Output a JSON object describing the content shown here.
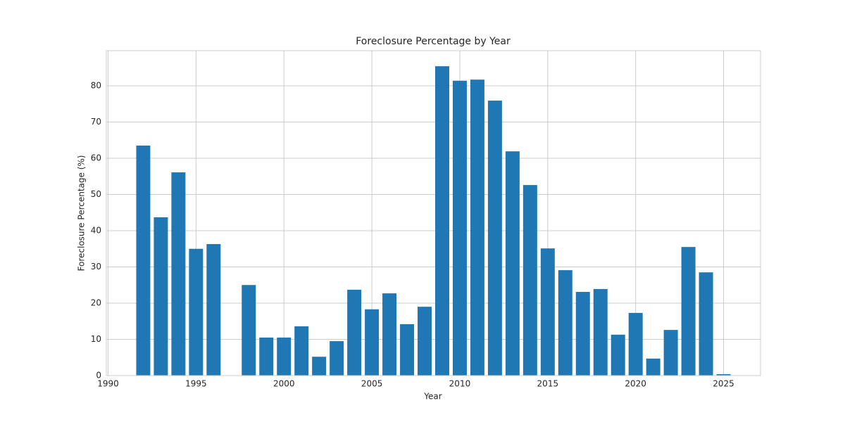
{
  "chart_data": {
    "type": "bar",
    "title": "Foreclosure Percentage by Year",
    "xlabel": "Year",
    "ylabel": "Foreclosure Percentage (%)",
    "x": [
      1992,
      1993,
      1994,
      1995,
      1996,
      1998,
      1999,
      2000,
      2001,
      2002,
      2003,
      2004,
      2005,
      2006,
      2007,
      2008,
      2009,
      2010,
      2011,
      2012,
      2013,
      2014,
      2015,
      2016,
      2017,
      2018,
      2019,
      2020,
      2021,
      2022,
      2023,
      2024,
      2025
    ],
    "values": [
      63.5,
      43.7,
      56.1,
      35.0,
      36.3,
      25.0,
      10.5,
      10.5,
      13.6,
      5.2,
      9.5,
      23.7,
      18.3,
      22.7,
      14.2,
      19.0,
      85.4,
      81.4,
      81.7,
      75.9,
      61.9,
      52.6,
      35.1,
      29.1,
      23.1,
      23.9,
      11.3,
      17.3,
      4.7,
      12.6,
      35.5,
      28.5,
      0.4
    ],
    "color": "#1f77b4",
    "xlim": [
      1989.9,
      2027.1
    ],
    "xticks": [
      1990,
      1995,
      2000,
      2005,
      2010,
      2015,
      2020,
      2025
    ],
    "ylim": [
      0,
      89.7
    ],
    "yticks": [
      0,
      10,
      20,
      30,
      40,
      50,
      60,
      70,
      80
    ],
    "grid": true
  }
}
